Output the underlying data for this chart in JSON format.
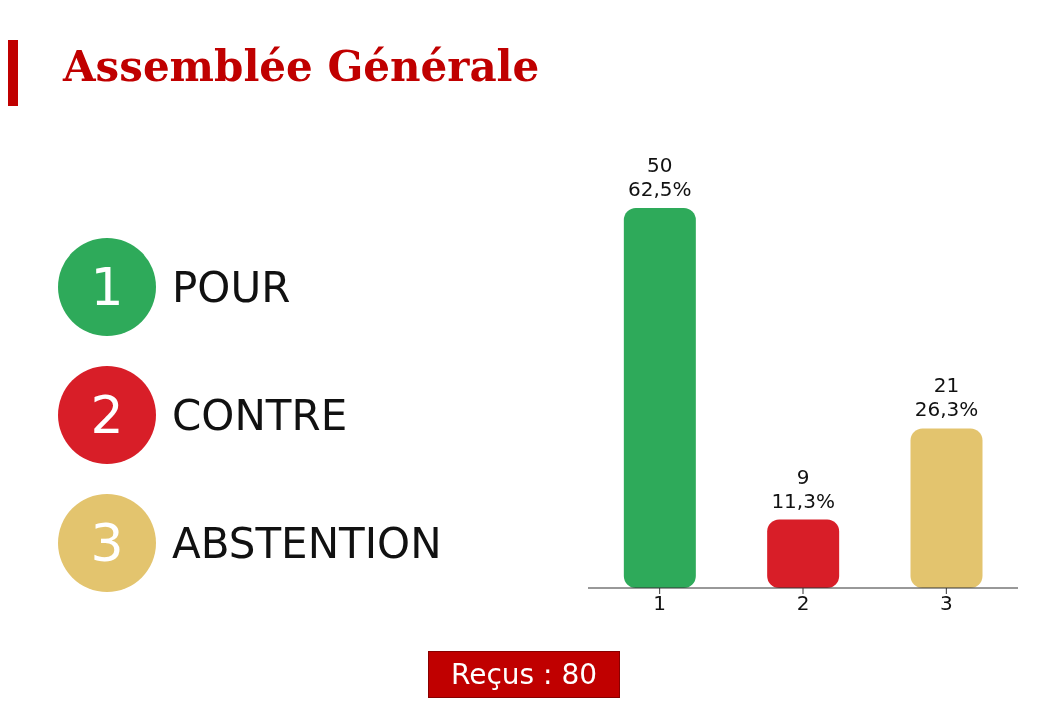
{
  "chart_data": {
    "type": "bar",
    "title": "Assemblée Générale",
    "categories": [
      "1",
      "2",
      "3"
    ],
    "series": [
      {
        "name": "POUR",
        "color": "#2eaa5a",
        "values": [
          50,
          null,
          null
        ],
        "value_labels": [
          "50\n62,5%",
          null,
          null
        ]
      },
      {
        "name": "CONTRE",
        "color": "#d81e28",
        "values": [
          null,
          9,
          null
        ],
        "value_labels": [
          null,
          "9\n11,3%",
          null
        ]
      },
      {
        "name": "ABSTENTION",
        "color": "#e3c46e",
        "values": [
          null,
          null,
          21
        ],
        "value_labels": [
          null,
          null,
          "21\n26,3%"
        ]
      }
    ],
    "legend": "left",
    "annotations": [
      "Reçus : 80"
    ]
  }
}
